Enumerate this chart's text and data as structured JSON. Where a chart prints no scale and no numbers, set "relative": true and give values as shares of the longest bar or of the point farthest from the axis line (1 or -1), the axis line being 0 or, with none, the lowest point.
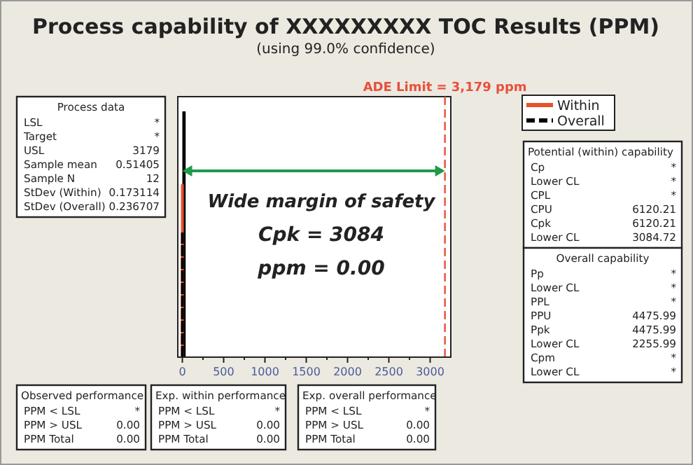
{
  "chart_data": [
    {
      "type": "histogram",
      "title": "Process capability of XXXXXXXXX TOC Results (PPM)",
      "subtitle": "(using 99.0% confidence)",
      "relative": true,
      "bins": [
        0,
        40
      ],
      "values": [
        1
      ],
      "color": "#000000",
      "series": [
        {
          "name": "Within",
          "type": "line",
          "color": "#e8502a",
          "line_style": "solid",
          "x": [
            0,
            0.51,
            1.03
          ],
          "values": [
            0,
            0.7,
            0
          ]
        },
        {
          "name": "Overall",
          "type": "line",
          "color": "#000000",
          "line_style": "dashed",
          "x": [
            0,
            0.51,
            1.22
          ],
          "values": [
            0,
            0.51,
            0
          ]
        }
      ],
      "xlim": [
        -55,
        3250
      ],
      "xticks": [
        0,
        {
          "value": 250,
          "label": null
        },
        500,
        {
          "value": 750,
          "label": null
        },
        1000,
        {
          "value": 1250,
          "label": null
        },
        1500,
        {
          "value": 1750,
          "label": null
        },
        2000,
        {
          "value": 2250,
          "label": null
        },
        2500,
        {
          "value": 2750,
          "label": null
        },
        3000
      ],
      "ref_lines": [
        {
          "axis": "x",
          "value": 3179,
          "label": "ADE Limit = 3,179 ppm",
          "color": "#e8503a",
          "line_style": "dashed"
        }
      ],
      "annotations": [
        "Wide margin of safety",
        "Cpk = 3084",
        "ppm = 0.00"
      ],
      "legend": "right",
      "grid": false
    },
    {
      "type": "other",
      "title": "Process data",
      "annotations": [
        "LSL",
        "*",
        "Target",
        "*",
        "USL",
        "3179",
        "Sample mean",
        "0.51405",
        "Sample N",
        "12",
        "StDev (Within)",
        "0.173114",
        "StDev (Overall)",
        "0.236707"
      ]
    },
    {
      "type": "other",
      "title": "Potential (within) capability",
      "annotations": [
        "Cp",
        "*",
        "Lower CL",
        "*",
        "CPL",
        "*",
        "CPU",
        "6120.21",
        "Cpk",
        "6120.21",
        "Lower CL",
        "3084.72"
      ]
    },
    {
      "type": "other",
      "title": "Overall capability",
      "annotations": [
        "Pp",
        "*",
        "Lower CL",
        "*",
        "PPL",
        "*",
        "PPU",
        "4475.99",
        "Ppk",
        "4475.99",
        "Lower CL",
        "2255.99",
        "Cpm",
        "*",
        "Lower CL",
        "*"
      ]
    },
    {
      "type": "other",
      "title": "Observed performance",
      "annotations": [
        "PPM < LSL",
        "*",
        "PPM > USL",
        "0.00",
        "PPM Total",
        "0.00"
      ]
    },
    {
      "type": "other",
      "title": "Exp. within performance",
      "annotations": [
        "PPM < LSL",
        "*",
        "PPM > USL",
        "0.00",
        "PPM Total",
        "0.00"
      ]
    },
    {
      "type": "other",
      "title": "Exp. overall performance",
      "annotations": [
        "PPM < LSL",
        "*",
        "PPM > USL",
        "0.00",
        "PPM Total",
        "0.00"
      ]
    }
  ]
}
